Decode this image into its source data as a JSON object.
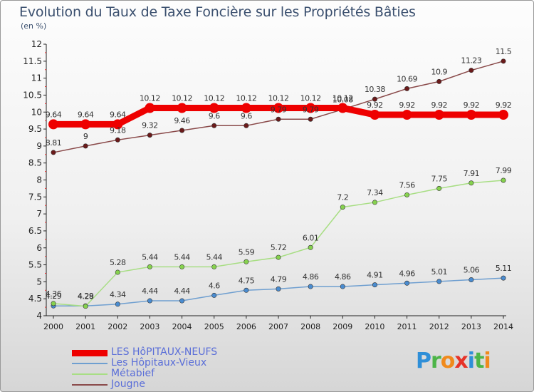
{
  "title": "Evolution du Taux de Taxe Foncière sur les Propriétés Bâties",
  "subtitle": "(en %)",
  "logo": {
    "text": "Proxiti",
    "colors": [
      "#2f8fd8",
      "#4db548",
      "#f08a1c",
      "#e63329",
      "#2f8fd8",
      "#4db548",
      "#f08a1c"
    ]
  },
  "chart_data": {
    "type": "line",
    "x": [
      "2000",
      "2001",
      "2002",
      "2003",
      "2004",
      "2005",
      "2006",
      "2007",
      "2008",
      "2009",
      "2010",
      "2011",
      "2012",
      "2013",
      "2014"
    ],
    "ylim": [
      4,
      12
    ],
    "yticks": [
      "4",
      "4.5",
      "5",
      "5.5",
      "6",
      "6.5",
      "7",
      "7.5",
      "8",
      "8.5",
      "9",
      "9.5",
      "10",
      "10.5",
      "11",
      "11.5",
      "12"
    ],
    "grid": false,
    "legend_position": "bottom-left",
    "series": [
      {
        "name": "LES HôPITAUX-NEUFS",
        "color": "#ee0000",
        "style": "thick",
        "values": [
          9.64,
          9.64,
          9.64,
          10.12,
          10.12,
          10.12,
          10.12,
          10.12,
          10.12,
          10.12,
          9.92,
          9.92,
          9.92,
          9.92,
          9.92
        ],
        "labels": [
          "9.64",
          "9.64",
          "9.64",
          "10.12",
          "10.12",
          "10.12",
          "10.12",
          "10.12",
          "10.12",
          "10.12",
          "9.92",
          "9.92",
          "9.92",
          "9.92",
          "9.92"
        ]
      },
      {
        "name": "Les Hôpitaux-Vieux",
        "color": "#6f9fd0",
        "marker": "#4a8cd0",
        "values": [
          4.29,
          4.29,
          4.34,
          4.44,
          4.44,
          4.6,
          4.75,
          4.79,
          4.86,
          4.86,
          4.91,
          4.96,
          5.01,
          5.06,
          5.11
        ],
        "labels": [
          "4.29",
          "4.29",
          "4.34",
          "4.44",
          "4.44",
          "4.6",
          "4.75",
          "4.79",
          "4.86",
          "4.86",
          "4.91",
          "4.96",
          "5.01",
          "5.06",
          "5.11"
        ]
      },
      {
        "name": "Métabief",
        "color": "#a8de84",
        "marker": "#86d24e",
        "values": [
          4.36,
          4.28,
          5.28,
          5.44,
          5.44,
          5.44,
          5.59,
          5.72,
          6.01,
          7.2,
          7.34,
          7.56,
          7.75,
          7.91,
          7.99
        ],
        "labels": [
          "4.36",
          "4.28",
          "5.28",
          "5.44",
          "5.44",
          "5.44",
          "5.59",
          "5.72",
          "6.01",
          "7.2",
          "7.34",
          "7.56",
          "7.75",
          "7.91",
          "7.99"
        ]
      },
      {
        "name": "Jougne",
        "color": "#8a4a4a",
        "marker": "#6b1a1a",
        "values": [
          8.81,
          9,
          9.18,
          9.32,
          9.46,
          9.6,
          9.6,
          9.79,
          9.79,
          10.08,
          10.38,
          10.69,
          10.9,
          11.23,
          11.5
        ],
        "labels": [
          "8.81",
          "9",
          "9.18",
          "9.32",
          "9.46",
          "9.6",
          "9.6",
          "9.79",
          "9.79",
          "10.08",
          "10.38",
          "10.69",
          "10.9",
          "11.23",
          "11.5"
        ]
      }
    ]
  }
}
